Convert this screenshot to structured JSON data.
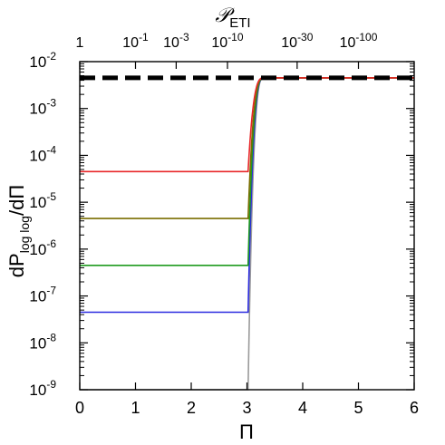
{
  "chart_data": {
    "type": "line",
    "bottom_axis": {
      "label": "Π",
      "range": [
        0,
        6
      ],
      "ticks": [
        0,
        1,
        2,
        3,
        4,
        5,
        6
      ],
      "tick_labels": [
        "0",
        "1",
        "2",
        "3",
        "4",
        "5",
        "6"
      ]
    },
    "top_axis": {
      "label_main": "𝒫",
      "label_sub": "ETI",
      "ticks": [
        {
          "x": 0.0,
          "base": "1",
          "exp": ""
        },
        {
          "x": 1.0,
          "base": "10",
          "exp": "-1"
        },
        {
          "x": 1.73,
          "base": "10",
          "exp": "-3"
        },
        {
          "x": 2.65,
          "base": "10",
          "exp": "-10"
        },
        {
          "x": 3.9,
          "base": "10",
          "exp": "-30"
        },
        {
          "x": 5.0,
          "base": "10",
          "exp": "-100"
        }
      ]
    },
    "left_axis": {
      "label_main": "dP",
      "label_sub": "log log",
      "label_tail": "/dΠ",
      "scale": "log",
      "range": [
        1e-09,
        0.01
      ],
      "ticks": [
        {
          "value": 1e-09,
          "base": "10",
          "exp": "-9"
        },
        {
          "value": 1e-08,
          "base": "10",
          "exp": "-8"
        },
        {
          "value": 1e-07,
          "base": "10",
          "exp": "-7"
        },
        {
          "value": 1e-06,
          "base": "10",
          "exp": "-6"
        },
        {
          "value": 1e-05,
          "base": "10",
          "exp": "-5"
        },
        {
          "value": 0.0001,
          "base": "10",
          "exp": "-4"
        },
        {
          "value": 0.001,
          "base": "10",
          "exp": "-3"
        },
        {
          "value": 0.01,
          "base": "10",
          "exp": "-2"
        }
      ]
    },
    "reference_line": {
      "y": 0.0045,
      "color": "#000000",
      "style": "dashed"
    },
    "step_x": 3.0,
    "rise": {
      "x_start": 3.02,
      "x_end": 3.3
    },
    "plateau_y": 0.0045,
    "series": [
      {
        "color": "#e8272a",
        "low_value": 4.5e-05
      },
      {
        "color": "#7a6e00",
        "low_value": 4.5e-06
      },
      {
        "color": "#1f9a1f",
        "low_value": 4.5e-07
      },
      {
        "color": "#2a2ae0",
        "low_value": 4.5e-08
      },
      {
        "color": "#9a9a9a",
        "low_value": 1e-09
      }
    ]
  }
}
